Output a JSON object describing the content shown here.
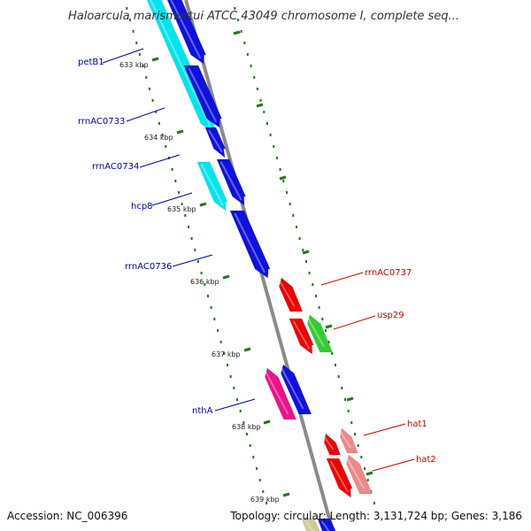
{
  "title": "Haloarcula marismortui ATCC 43049 chromosome I, complete seq...",
  "footer": {
    "accession": "Accession: NC_006396",
    "topology": "Topology: circular; Length: 3,131,724 bp; Genes: 3,186"
  },
  "colors": {
    "backbone": "#8a8a8a",
    "tick": "#1e7a1e",
    "label_forward": "#0000b0",
    "label_reverse": "#cc0000",
    "cyan": "#00e5ee",
    "blue": "#1010e0",
    "red": "#ee0000",
    "green": "#33cc33",
    "pink": "#ee1188",
    "salmon": "#ee8888",
    "olive": "#cccc99"
  },
  "ticks": [
    {
      "label": "633 kbp"
    },
    {
      "label": "634 kbp"
    },
    {
      "label": "635 kbp"
    },
    {
      "label": "636 kbp"
    },
    {
      "label": "637 kbp"
    },
    {
      "label": "638 kbp"
    },
    {
      "label": "639 kbp"
    }
  ],
  "forward_labels": [
    "petB1",
    "rrnAC0733",
    "rrnAC0734",
    "hcp8",
    "rrnAC0736",
    "nthA"
  ],
  "reverse_labels": [
    "rrnAC0737",
    "usp29",
    "hat1",
    "hat2"
  ]
}
